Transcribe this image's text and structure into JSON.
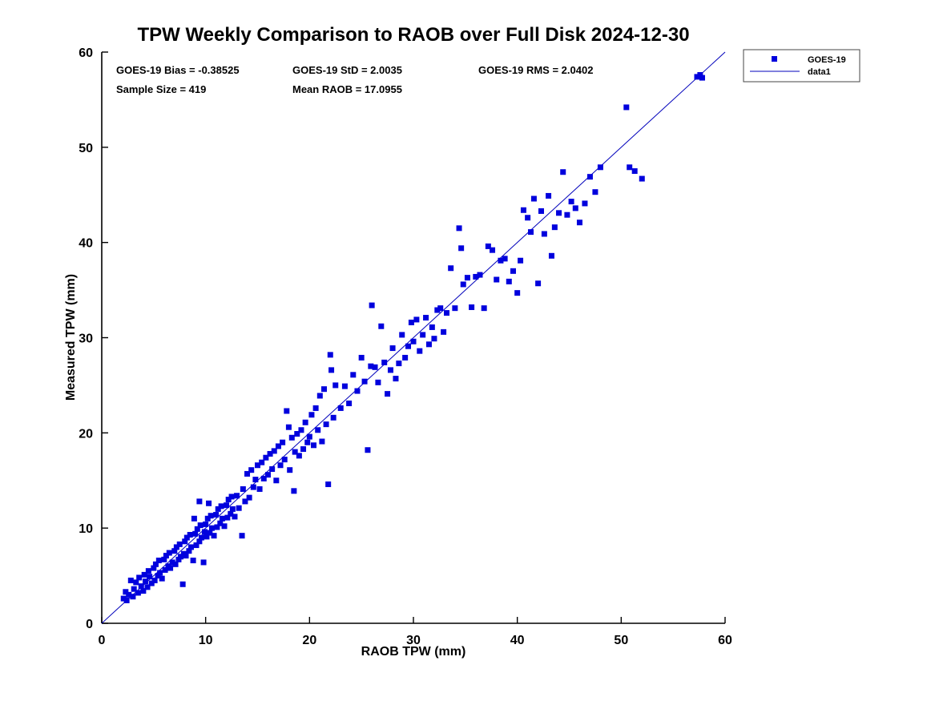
{
  "title": "TPW Weekly Comparison to RAOB over Full Disk 2024-12-30",
  "stats": {
    "bias": "GOES-19 Bias = -0.38525",
    "std": "GOES-19 StD = 2.0035",
    "rms": "GOES-19 RMS = 2.0402",
    "sample": "Sample Size = 419",
    "mean_raob": "Mean RAOB = 17.0955"
  },
  "legend": {
    "series1": "GOES-19",
    "series2": "data1"
  },
  "chart_data": {
    "type": "scatter",
    "title": "TPW Weekly Comparison to RAOB over Full Disk 2024-12-30",
    "xlabel": "RAOB TPW (mm)",
    "ylabel": "Measured TPW (mm)",
    "xlim": [
      0,
      60
    ],
    "ylim": [
      0,
      60
    ],
    "xticks": [
      0,
      10,
      20,
      30,
      40,
      50,
      60
    ],
    "yticks": [
      0,
      10,
      20,
      30,
      40,
      50,
      60
    ],
    "grid": false,
    "legend_position": "top-right",
    "marker_color": "#0000dd",
    "line_color": "#0000bb",
    "axis_color": "#000000",
    "stats": {
      "bias": -0.38525,
      "std": 2.0035,
      "rms": 2.0402,
      "sample_size": 419,
      "mean_raob": 17.0955
    },
    "reference_line": {
      "label": "data1",
      "x": [
        0,
        60
      ],
      "y": [
        0,
        60
      ]
    },
    "series": [
      {
        "name": "GOES-19",
        "marker": "square",
        "points": [
          [
            2.1,
            2.6
          ],
          [
            2.3,
            3.3
          ],
          [
            2.4,
            2.4
          ],
          [
            2.6,
            3.0
          ],
          [
            2.8,
            4.5
          ],
          [
            3.0,
            2.8
          ],
          [
            3.1,
            3.6
          ],
          [
            3.3,
            4.3
          ],
          [
            3.5,
            3.2
          ],
          [
            3.6,
            4.8
          ],
          [
            3.8,
            3.9
          ],
          [
            4.0,
            3.4
          ],
          [
            4.1,
            5.1
          ],
          [
            4.2,
            4.4
          ],
          [
            4.4,
            3.8
          ],
          [
            4.5,
            5.5
          ],
          [
            4.6,
            4.9
          ],
          [
            4.8,
            4.2
          ],
          [
            5.0,
            5.8
          ],
          [
            5.1,
            4.5
          ],
          [
            5.2,
            6.2
          ],
          [
            5.4,
            5.0
          ],
          [
            5.5,
            6.6
          ],
          [
            5.6,
            5.3
          ],
          [
            5.8,
            4.7
          ],
          [
            6.0,
            6.7
          ],
          [
            6.1,
            5.6
          ],
          [
            6.2,
            7.1
          ],
          [
            6.4,
            6.0
          ],
          [
            6.5,
            7.4
          ],
          [
            6.6,
            5.8
          ],
          [
            6.8,
            6.4
          ],
          [
            7.0,
            7.6
          ],
          [
            7.1,
            6.2
          ],
          [
            7.2,
            8.0
          ],
          [
            7.4,
            6.7
          ],
          [
            7.5,
            8.3
          ],
          [
            7.6,
            7.0
          ],
          [
            7.8,
            4.1
          ],
          [
            7.9,
            7.3
          ],
          [
            8.0,
            8.6
          ],
          [
            8.1,
            7.1
          ],
          [
            8.2,
            9.0
          ],
          [
            8.4,
            7.6
          ],
          [
            8.5,
            9.3
          ],
          [
            8.6,
            8.0
          ],
          [
            8.8,
            6.6
          ],
          [
            8.9,
            11.0
          ],
          [
            9.0,
            9.4
          ],
          [
            9.1,
            8.2
          ],
          [
            9.2,
            9.9
          ],
          [
            9.4,
            8.6
          ],
          [
            9.4,
            12.8
          ],
          [
            9.5,
            10.3
          ],
          [
            9.6,
            9.0
          ],
          [
            9.8,
            6.4
          ],
          [
            9.9,
            9.6
          ],
          [
            10.0,
            10.4
          ],
          [
            10.1,
            9.1
          ],
          [
            10.2,
            11.0
          ],
          [
            10.3,
            12.6
          ],
          [
            10.4,
            9.5
          ],
          [
            10.5,
            11.3
          ],
          [
            10.6,
            10.0
          ],
          [
            10.8,
            9.2
          ],
          [
            11.0,
            11.4
          ],
          [
            11.1,
            10.1
          ],
          [
            11.2,
            12.0
          ],
          [
            11.4,
            10.5
          ],
          [
            11.5,
            12.3
          ],
          [
            11.6,
            11.0
          ],
          [
            11.8,
            10.2
          ],
          [
            12.0,
            12.4
          ],
          [
            12.1,
            11.1
          ],
          [
            12.2,
            13.0
          ],
          [
            12.4,
            11.5
          ],
          [
            12.5,
            13.3
          ],
          [
            12.6,
            12.0
          ],
          [
            12.8,
            11.2
          ],
          [
            13.0,
            13.4
          ],
          [
            13.2,
            12.1
          ],
          [
            13.5,
            9.2
          ],
          [
            13.6,
            14.1
          ],
          [
            13.8,
            12.8
          ],
          [
            14.0,
            15.7
          ],
          [
            14.2,
            13.2
          ],
          [
            14.4,
            16.1
          ],
          [
            14.6,
            14.3
          ],
          [
            14.8,
            15.1
          ],
          [
            15.0,
            16.6
          ],
          [
            15.2,
            14.1
          ],
          [
            15.4,
            16.9
          ],
          [
            15.6,
            15.2
          ],
          [
            15.8,
            17.4
          ],
          [
            16.0,
            15.6
          ],
          [
            16.2,
            17.8
          ],
          [
            16.4,
            16.2
          ],
          [
            16.6,
            18.1
          ],
          [
            16.8,
            15.0
          ],
          [
            17.0,
            18.6
          ],
          [
            17.2,
            16.6
          ],
          [
            17.4,
            19.0
          ],
          [
            17.6,
            17.2
          ],
          [
            17.8,
            22.3
          ],
          [
            18.0,
            20.6
          ],
          [
            18.1,
            16.1
          ],
          [
            18.3,
            19.5
          ],
          [
            18.5,
            13.9
          ],
          [
            18.6,
            18.0
          ],
          [
            18.8,
            19.9
          ],
          [
            19.0,
            17.6
          ],
          [
            19.2,
            20.3
          ],
          [
            19.4,
            18.3
          ],
          [
            19.6,
            21.1
          ],
          [
            19.8,
            19.0
          ],
          [
            20.0,
            19.6
          ],
          [
            20.2,
            21.9
          ],
          [
            20.4,
            18.7
          ],
          [
            20.6,
            22.6
          ],
          [
            20.8,
            20.3
          ],
          [
            21.0,
            23.9
          ],
          [
            21.2,
            19.1
          ],
          [
            21.4,
            24.6
          ],
          [
            21.6,
            20.9
          ],
          [
            21.8,
            14.6
          ],
          [
            22.0,
            28.2
          ],
          [
            22.1,
            26.6
          ],
          [
            22.3,
            21.6
          ],
          [
            22.5,
            25.0
          ],
          [
            23.0,
            22.6
          ],
          [
            23.4,
            24.9
          ],
          [
            23.8,
            23.1
          ],
          [
            24.2,
            26.1
          ],
          [
            24.6,
            24.4
          ],
          [
            25.0,
            27.9
          ],
          [
            25.3,
            25.4
          ],
          [
            25.6,
            18.2
          ],
          [
            25.9,
            27.0
          ],
          [
            26.0,
            33.4
          ],
          [
            26.3,
            26.9
          ],
          [
            26.6,
            25.3
          ],
          [
            26.9,
            31.2
          ],
          [
            27.2,
            27.4
          ],
          [
            27.5,
            24.1
          ],
          [
            27.8,
            26.6
          ],
          [
            28.0,
            28.9
          ],
          [
            28.3,
            25.7
          ],
          [
            28.6,
            27.3
          ],
          [
            28.9,
            30.3
          ],
          [
            29.2,
            27.9
          ],
          [
            29.5,
            29.1
          ],
          [
            29.8,
            31.6
          ],
          [
            30.0,
            29.6
          ],
          [
            30.3,
            31.9
          ],
          [
            30.6,
            28.6
          ],
          [
            30.9,
            30.3
          ],
          [
            31.2,
            32.1
          ],
          [
            31.5,
            29.3
          ],
          [
            31.8,
            31.1
          ],
          [
            32.0,
            29.9
          ],
          [
            32.3,
            32.9
          ],
          [
            32.6,
            33.1
          ],
          [
            32.9,
            30.6
          ],
          [
            33.2,
            32.6
          ],
          [
            33.6,
            37.3
          ],
          [
            34.0,
            33.1
          ],
          [
            34.4,
            41.5
          ],
          [
            34.6,
            39.4
          ],
          [
            34.8,
            35.6
          ],
          [
            35.2,
            36.3
          ],
          [
            35.6,
            33.2
          ],
          [
            36.0,
            36.4
          ],
          [
            36.4,
            36.6
          ],
          [
            36.8,
            33.1
          ],
          [
            37.2,
            39.6
          ],
          [
            37.6,
            39.2
          ],
          [
            38.0,
            36.1
          ],
          [
            38.4,
            38.1
          ],
          [
            38.8,
            38.3
          ],
          [
            39.2,
            35.9
          ],
          [
            39.6,
            37.0
          ],
          [
            40.0,
            34.7
          ],
          [
            40.3,
            38.1
          ],
          [
            40.6,
            43.4
          ],
          [
            41.0,
            42.6
          ],
          [
            41.3,
            41.1
          ],
          [
            41.6,
            44.6
          ],
          [
            42.0,
            35.7
          ],
          [
            42.3,
            43.3
          ],
          [
            42.6,
            40.9
          ],
          [
            43.0,
            44.9
          ],
          [
            43.3,
            38.6
          ],
          [
            43.6,
            41.6
          ],
          [
            44.0,
            43.1
          ],
          [
            44.4,
            47.4
          ],
          [
            44.8,
            42.9
          ],
          [
            45.2,
            44.3
          ],
          [
            45.6,
            43.6
          ],
          [
            46.0,
            42.1
          ],
          [
            46.5,
            44.1
          ],
          [
            47.0,
            46.9
          ],
          [
            47.5,
            45.3
          ],
          [
            48.0,
            47.9
          ],
          [
            50.5,
            54.2
          ],
          [
            50.8,
            47.9
          ],
          [
            51.3,
            47.5
          ],
          [
            52.0,
            46.7
          ],
          [
            57.3,
            57.4
          ],
          [
            57.6,
            57.6
          ],
          [
            57.8,
            57.3
          ]
        ]
      }
    ]
  }
}
